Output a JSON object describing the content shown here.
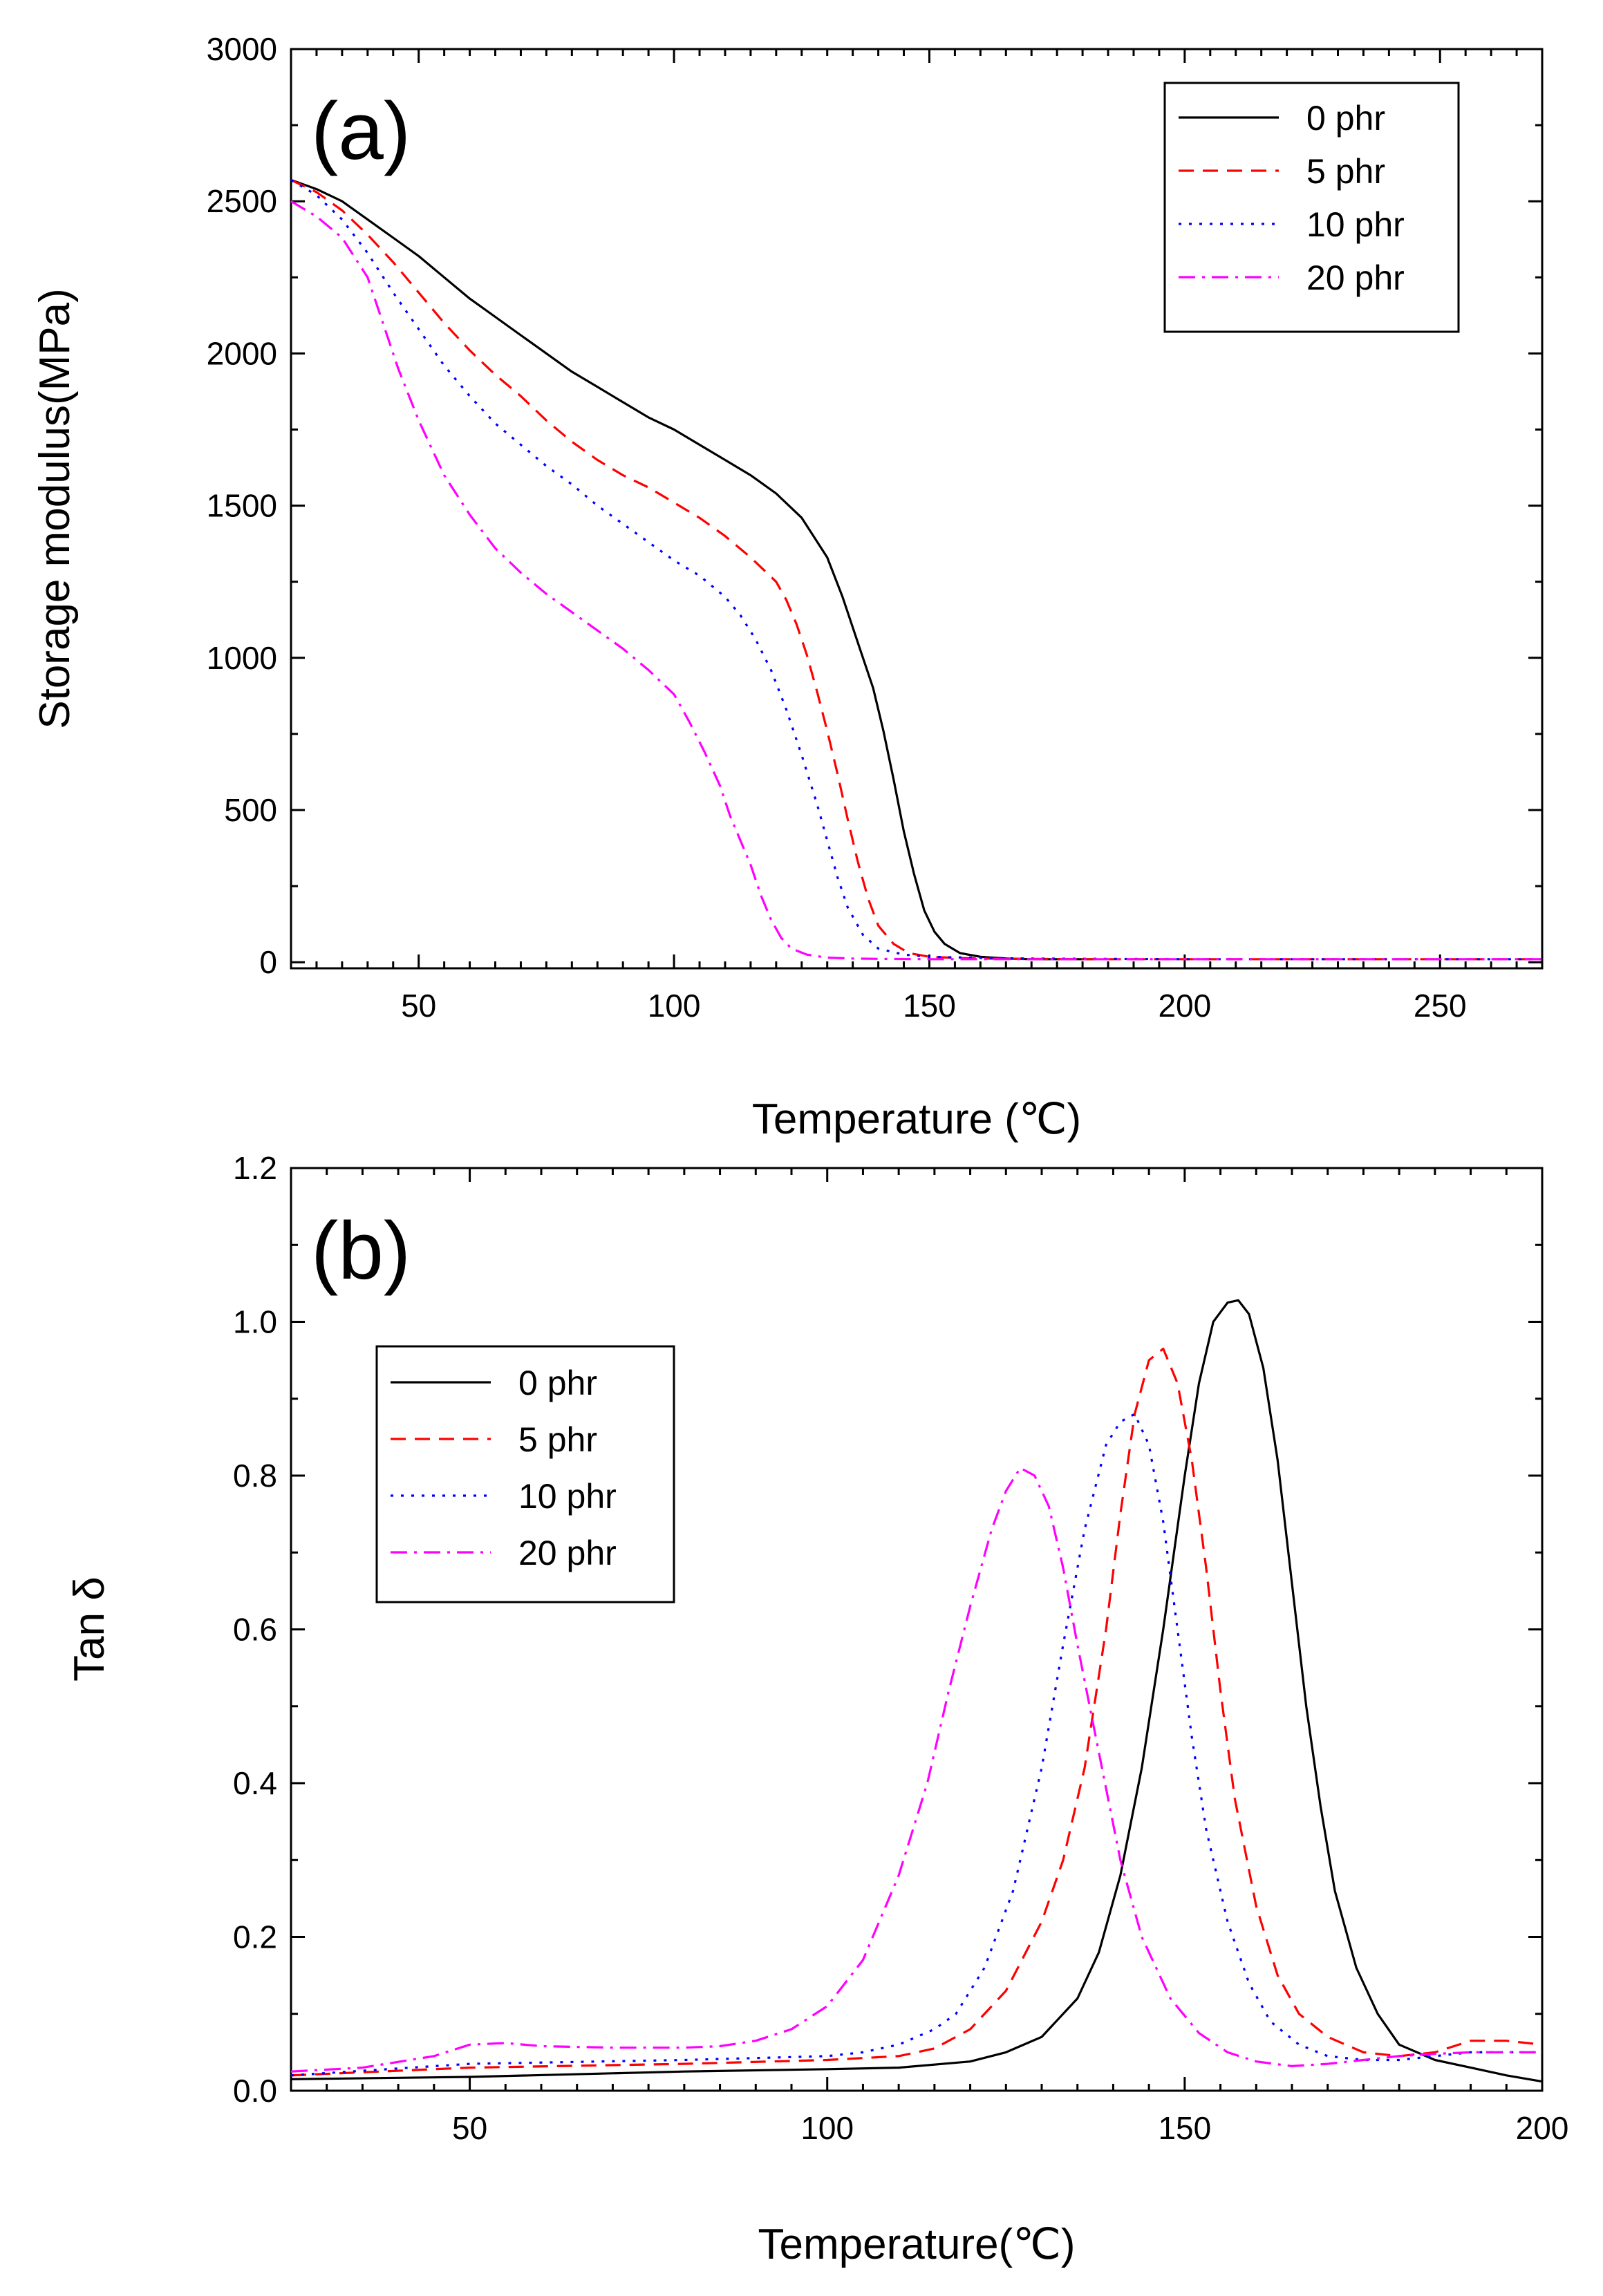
{
  "colors": {
    "0 phr": "#000000",
    "5 phr": "#ff0000",
    "10 phr": "#0000ff",
    "20 phr": "#ff00ff"
  },
  "chart_data": [
    {
      "type": "line",
      "panel": "(a)",
      "title": "",
      "xlabel": "Temperature (℃)",
      "ylabel": "Storage modulus(MPa)",
      "xlim": [
        25,
        270
      ],
      "ylim": [
        -20,
        3000
      ],
      "xticks": [
        50,
        100,
        150,
        200,
        250
      ],
      "yticks": [
        0,
        500,
        1000,
        1500,
        2000,
        2500,
        3000
      ],
      "grid": false,
      "legend_position": "top-right",
      "series": [
        {
          "name": "0 phr",
          "style": "solid",
          "x": [
            25,
            30,
            35,
            40,
            45,
            50,
            55,
            60,
            65,
            70,
            75,
            80,
            85,
            90,
            95,
            100,
            105,
            110,
            115,
            120,
            125,
            130,
            133,
            136,
            139,
            141,
            143,
            145,
            147,
            149,
            151,
            153,
            156,
            160,
            165,
            170,
            175,
            182
          ],
          "values": [
            2570,
            2540,
            2500,
            2440,
            2380,
            2320,
            2250,
            2180,
            2120,
            2060,
            2000,
            1940,
            1890,
            1840,
            1790,
            1750,
            1700,
            1650,
            1600,
            1540,
            1460,
            1330,
            1200,
            1050,
            900,
            760,
            600,
            430,
            290,
            170,
            100,
            60,
            30,
            18,
            12,
            10,
            10,
            10
          ]
        },
        {
          "name": "5 phr",
          "style": "dashed",
          "x": [
            25,
            30,
            35,
            40,
            45,
            50,
            55,
            60,
            65,
            70,
            75,
            80,
            85,
            90,
            95,
            100,
            105,
            110,
            115,
            120,
            122,
            124,
            126,
            128,
            130,
            132,
            134,
            136,
            138,
            140,
            143,
            146,
            150,
            155,
            160,
            170,
            180,
            200,
            230,
            270
          ],
          "values": [
            2570,
            2530,
            2470,
            2390,
            2300,
            2200,
            2100,
            2010,
            1930,
            1860,
            1780,
            1710,
            1650,
            1600,
            1560,
            1510,
            1460,
            1400,
            1330,
            1250,
            1190,
            1110,
            1010,
            890,
            760,
            620,
            470,
            330,
            210,
            120,
            60,
            30,
            18,
            14,
            12,
            11,
            10,
            10,
            10,
            10
          ]
        },
        {
          "name": "10 phr",
          "style": "dotted",
          "x": [
            25,
            30,
            35,
            40,
            45,
            50,
            55,
            60,
            65,
            70,
            75,
            80,
            85,
            90,
            95,
            100,
            105,
            110,
            113,
            116,
            119,
            122,
            125,
            128,
            130,
            132,
            134,
            137,
            140,
            145,
            150,
            160,
            170,
            200,
            270
          ],
          "values": [
            2570,
            2520,
            2440,
            2330,
            2200,
            2080,
            1960,
            1860,
            1770,
            1700,
            1630,
            1570,
            1500,
            1440,
            1380,
            1320,
            1270,
            1200,
            1140,
            1060,
            960,
            830,
            680,
            520,
            400,
            280,
            180,
            90,
            45,
            25,
            18,
            14,
            12,
            10,
            10
          ]
        },
        {
          "name": "20 phr",
          "style": "dash-dot",
          "x": [
            25,
            30,
            35,
            40,
            43,
            46,
            50,
            55,
            60,
            65,
            70,
            75,
            80,
            85,
            90,
            95,
            100,
            103,
            106,
            109,
            111,
            113,
            115,
            117,
            119,
            121,
            123,
            126,
            130,
            135,
            140,
            150,
            160,
            180,
            220,
            270
          ],
          "values": [
            2500,
            2450,
            2380,
            2250,
            2100,
            1950,
            1780,
            1600,
            1470,
            1360,
            1280,
            1210,
            1150,
            1090,
            1030,
            960,
            880,
            790,
            690,
            580,
            480,
            400,
            320,
            220,
            140,
            80,
            45,
            25,
            15,
            12,
            11,
            10,
            10,
            10,
            10,
            10
          ]
        }
      ]
    },
    {
      "type": "line",
      "panel": "(b)",
      "title": "",
      "xlabel": "Temperature(℃)",
      "ylabel": "Tan δ",
      "xlim": [
        25,
        200
      ],
      "ylim": [
        0.0,
        1.2
      ],
      "xticks": [
        50,
        100,
        150,
        200
      ],
      "yticks": [
        0.0,
        0.2,
        0.4,
        0.6,
        0.8,
        1.0,
        1.2
      ],
      "grid": false,
      "legend_position": "upper-left",
      "series": [
        {
          "name": "0 phr",
          "style": "solid",
          "x": [
            25,
            50,
            80,
            100,
            110,
            120,
            125,
            130,
            135,
            138,
            141,
            144,
            147,
            150,
            152,
            154,
            156,
            157.5,
            159,
            161,
            163,
            165,
            167,
            169,
            171,
            174,
            177,
            180,
            185,
            190,
            195,
            200
          ],
          "values": [
            0.015,
            0.018,
            0.025,
            0.028,
            0.03,
            0.038,
            0.05,
            0.07,
            0.12,
            0.18,
            0.28,
            0.42,
            0.6,
            0.8,
            0.92,
            1.0,
            1.025,
            1.028,
            1.01,
            0.94,
            0.82,
            0.66,
            0.5,
            0.37,
            0.26,
            0.16,
            0.1,
            0.06,
            0.04,
            0.03,
            0.02,
            0.012
          ]
        },
        {
          "name": "5 phr",
          "style": "dashed",
          "x": [
            25,
            50,
            80,
            100,
            110,
            115,
            120,
            125,
            130,
            133,
            136,
            139,
            141,
            143,
            145,
            147,
            149,
            151,
            153,
            155,
            157,
            160,
            163,
            166,
            170,
            175,
            180,
            185,
            190,
            195,
            200
          ],
          "values": [
            0.02,
            0.03,
            0.035,
            0.04,
            0.045,
            0.055,
            0.08,
            0.13,
            0.22,
            0.3,
            0.42,
            0.6,
            0.75,
            0.88,
            0.95,
            0.965,
            0.92,
            0.82,
            0.68,
            0.52,
            0.38,
            0.24,
            0.15,
            0.1,
            0.07,
            0.05,
            0.045,
            0.05,
            0.065,
            0.065,
            0.06
          ]
        },
        {
          "name": "10 phr",
          "style": "dotted",
          "x": [
            25,
            50,
            80,
            100,
            105,
            110,
            115,
            118,
            122,
            126,
            130,
            133,
            136,
            139,
            141,
            143,
            145,
            147,
            149,
            151,
            153,
            156,
            159,
            162,
            166,
            170,
            175,
            180,
            185,
            190,
            195,
            200
          ],
          "values": [
            0.02,
            0.035,
            0.04,
            0.045,
            0.05,
            0.06,
            0.08,
            0.1,
            0.16,
            0.26,
            0.42,
            0.58,
            0.73,
            0.84,
            0.87,
            0.88,
            0.84,
            0.74,
            0.6,
            0.46,
            0.34,
            0.22,
            0.14,
            0.09,
            0.06,
            0.045,
            0.04,
            0.04,
            0.045,
            0.05,
            0.05,
            0.05
          ]
        },
        {
          "name": "20 phr",
          "style": "dash-dot",
          "x": [
            25,
            35,
            45,
            50,
            55,
            60,
            70,
            80,
            85,
            90,
            95,
            100,
            105,
            110,
            114,
            117,
            120,
            123,
            125,
            127,
            129,
            131,
            133,
            135,
            138,
            141,
            144,
            148,
            152,
            156,
            160,
            165,
            170,
            175,
            180,
            185,
            190,
            195,
            200
          ],
          "values": [
            0.025,
            0.03,
            0.045,
            0.06,
            0.062,
            0.058,
            0.056,
            0.056,
            0.058,
            0.065,
            0.08,
            0.11,
            0.17,
            0.28,
            0.4,
            0.52,
            0.63,
            0.73,
            0.78,
            0.81,
            0.8,
            0.76,
            0.68,
            0.58,
            0.44,
            0.3,
            0.2,
            0.12,
            0.075,
            0.05,
            0.038,
            0.032,
            0.035,
            0.04,
            0.045,
            0.048,
            0.05,
            0.05,
            0.05
          ]
        }
      ]
    }
  ]
}
